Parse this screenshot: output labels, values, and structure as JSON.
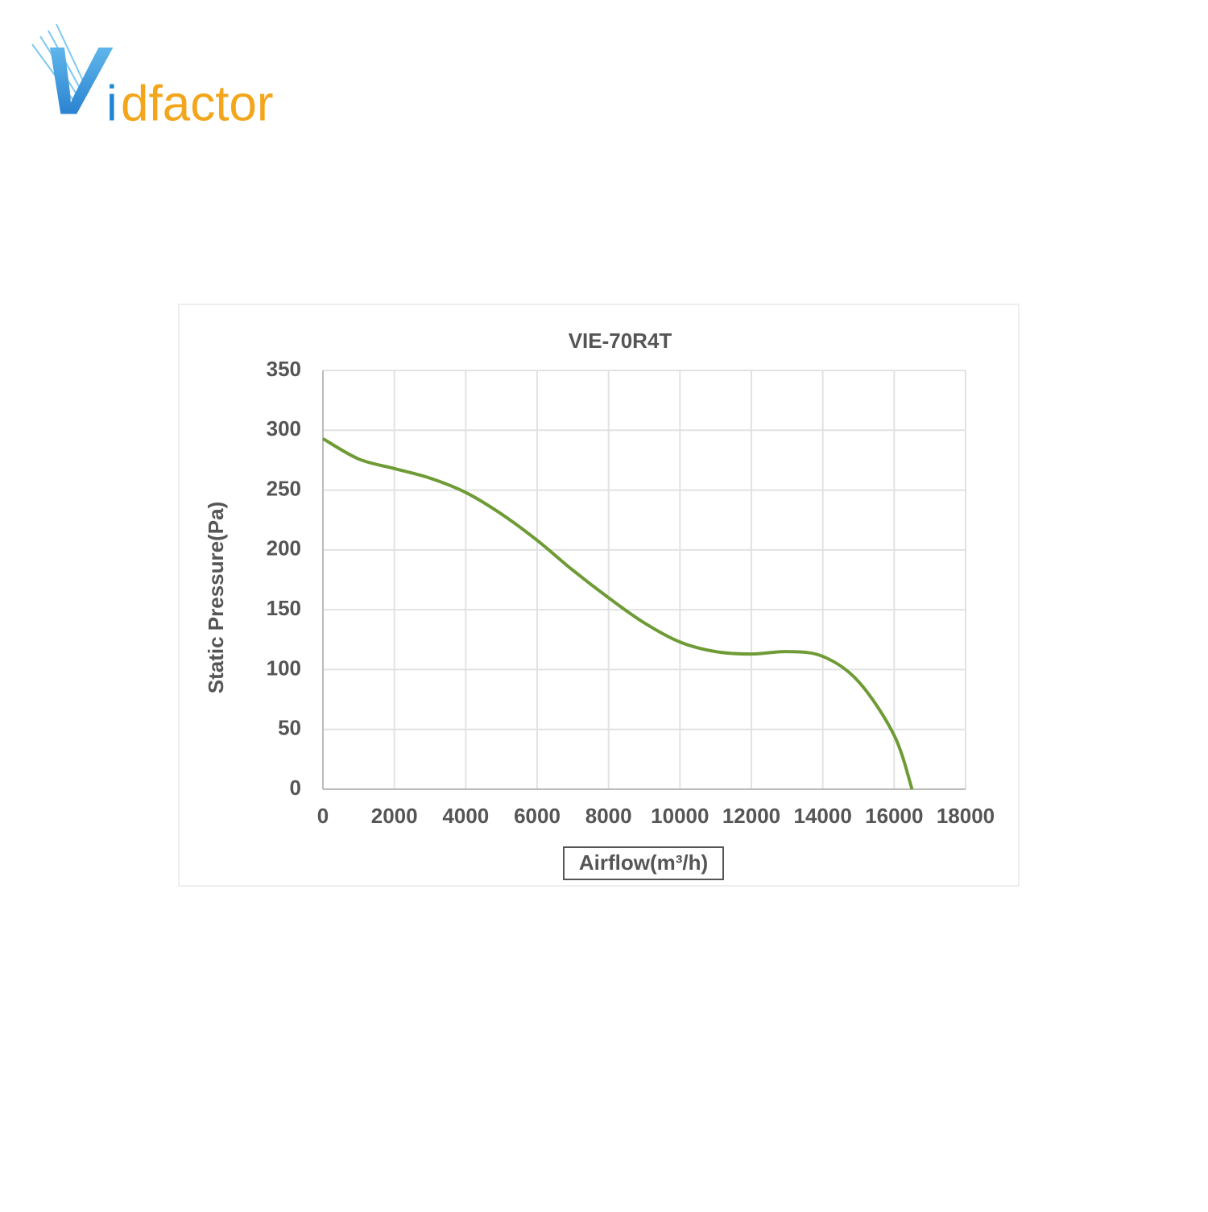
{
  "logo": {
    "parts": [
      "V",
      "i",
      "dfactor"
    ]
  },
  "chart_data": {
    "type": "line",
    "title": "VIE-70R4T",
    "x_label": "Airflow(m³/h)",
    "y_label": "Static Pressure(Pa)",
    "x": [
      0,
      1000,
      2000,
      3000,
      4000,
      5000,
      6000,
      7000,
      8000,
      9000,
      10000,
      11000,
      12000,
      13000,
      14000,
      15000,
      16000,
      16500
    ],
    "series": [
      {
        "color": "#6e9b35",
        "values": [
          293,
          276,
          268,
          260,
          248,
          230,
          208,
          183,
          160,
          139,
          123,
          115,
          113,
          115,
          111,
          90,
          45,
          0
        ]
      }
    ],
    "xlim": [
      0,
      18000
    ],
    "xticks": [
      0,
      2000,
      4000,
      6000,
      8000,
      10000,
      12000,
      14000,
      16000,
      18000
    ],
    "ylim": [
      0,
      350
    ],
    "yticks": [
      0,
      50,
      100,
      150,
      200,
      250,
      300,
      350
    ],
    "grid": true
  }
}
